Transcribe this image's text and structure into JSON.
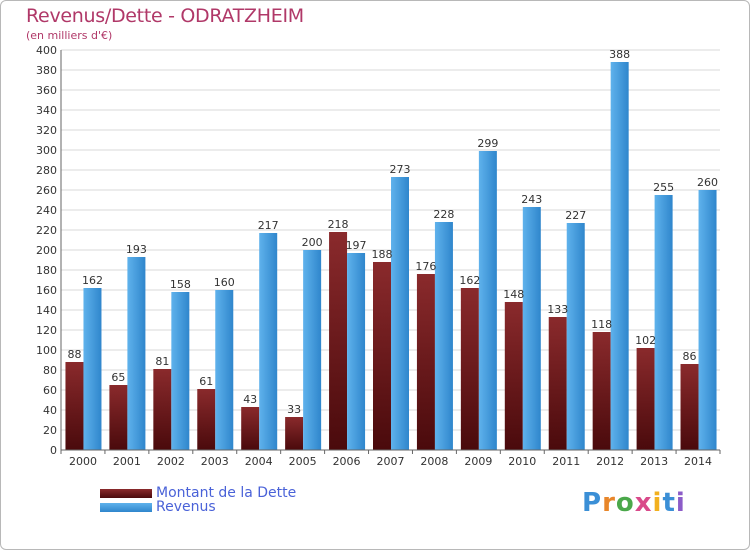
{
  "chart_data": {
    "type": "bar",
    "title": "Revenus/Dette - ODRATZHEIM",
    "subtitle": "(en milliers d'€)",
    "categories": [
      "2000",
      "2001",
      "2002",
      "2003",
      "2004",
      "2005",
      "2006",
      "2007",
      "2008",
      "2009",
      "2010",
      "2011",
      "2012",
      "2013",
      "2014"
    ],
    "series": [
      {
        "name": "Montant de la Dette",
        "color": "#7a1e22",
        "values": [
          88,
          65,
          81,
          61,
          43,
          33,
          218,
          188,
          176,
          162,
          148,
          133,
          118,
          102,
          86
        ]
      },
      {
        "name": "Revenus",
        "color": "#4aa3e4",
        "values": [
          162,
          193,
          158,
          160,
          217,
          200,
          197,
          273,
          228,
          299,
          243,
          227,
          388,
          255,
          260
        ]
      }
    ],
    "ylim": [
      0,
      400
    ],
    "yticks": [
      0,
      20,
      40,
      60,
      80,
      100,
      120,
      140,
      160,
      180,
      200,
      220,
      240,
      260,
      280,
      300,
      320,
      340,
      360,
      380,
      400
    ],
    "grid": true,
    "legend": "bottom-left"
  },
  "logo": {
    "text": "Proxiti"
  }
}
